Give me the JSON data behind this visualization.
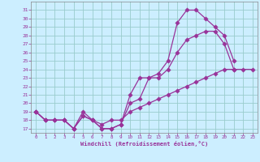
{
  "line1_x": [
    0,
    1,
    2,
    3,
    4,
    5,
    6,
    7,
    8,
    9,
    10,
    11,
    12,
    13,
    14,
    15,
    16,
    17,
    18,
    19,
    20,
    21
  ],
  "line1_y": [
    19,
    18,
    18,
    18,
    17,
    19,
    18,
    17,
    17,
    17.5,
    20,
    20.5,
    23,
    23.5,
    25,
    29.5,
    31,
    31,
    30,
    29,
    28,
    25
  ],
  "line2_x": [
    0,
    1,
    2,
    3,
    4,
    5,
    6,
    7,
    8,
    9,
    10,
    11,
    12,
    13,
    14,
    15,
    16,
    17,
    18,
    19,
    20,
    21
  ],
  "line2_y": [
    19,
    18,
    18,
    18,
    17,
    18.5,
    18,
    17,
    17,
    17.5,
    21,
    23,
    23,
    23,
    24,
    26,
    27.5,
    28,
    28.5,
    28.5,
    27,
    24
  ],
  "line3_x": [
    0,
    1,
    2,
    3,
    4,
    5,
    6,
    7,
    8,
    9,
    10,
    11,
    12,
    13,
    14,
    15,
    16,
    17,
    18,
    19,
    20,
    21,
    22,
    23
  ],
  "line3_y": [
    19,
    18,
    18,
    18,
    17,
    18.5,
    18,
    17.5,
    18,
    18,
    19,
    19.5,
    20,
    20.5,
    21,
    21.5,
    22,
    22.5,
    23,
    23.5,
    24,
    24,
    24,
    24
  ],
  "color": "#993399",
  "bg_color": "#cceeff",
  "grid_color": "#99cccc",
  "xlabel": "Windchill (Refroidissement éolien,°C)",
  "xlim": [
    -0.5,
    23.5
  ],
  "ylim": [
    16.5,
    32
  ],
  "yticks": [
    17,
    18,
    19,
    20,
    21,
    22,
    23,
    24,
    25,
    26,
    27,
    28,
    29,
    30,
    31
  ],
  "xticks": [
    0,
    1,
    2,
    3,
    4,
    5,
    6,
    7,
    8,
    9,
    10,
    11,
    12,
    13,
    14,
    15,
    16,
    17,
    18,
    19,
    20,
    21,
    22,
    23
  ]
}
